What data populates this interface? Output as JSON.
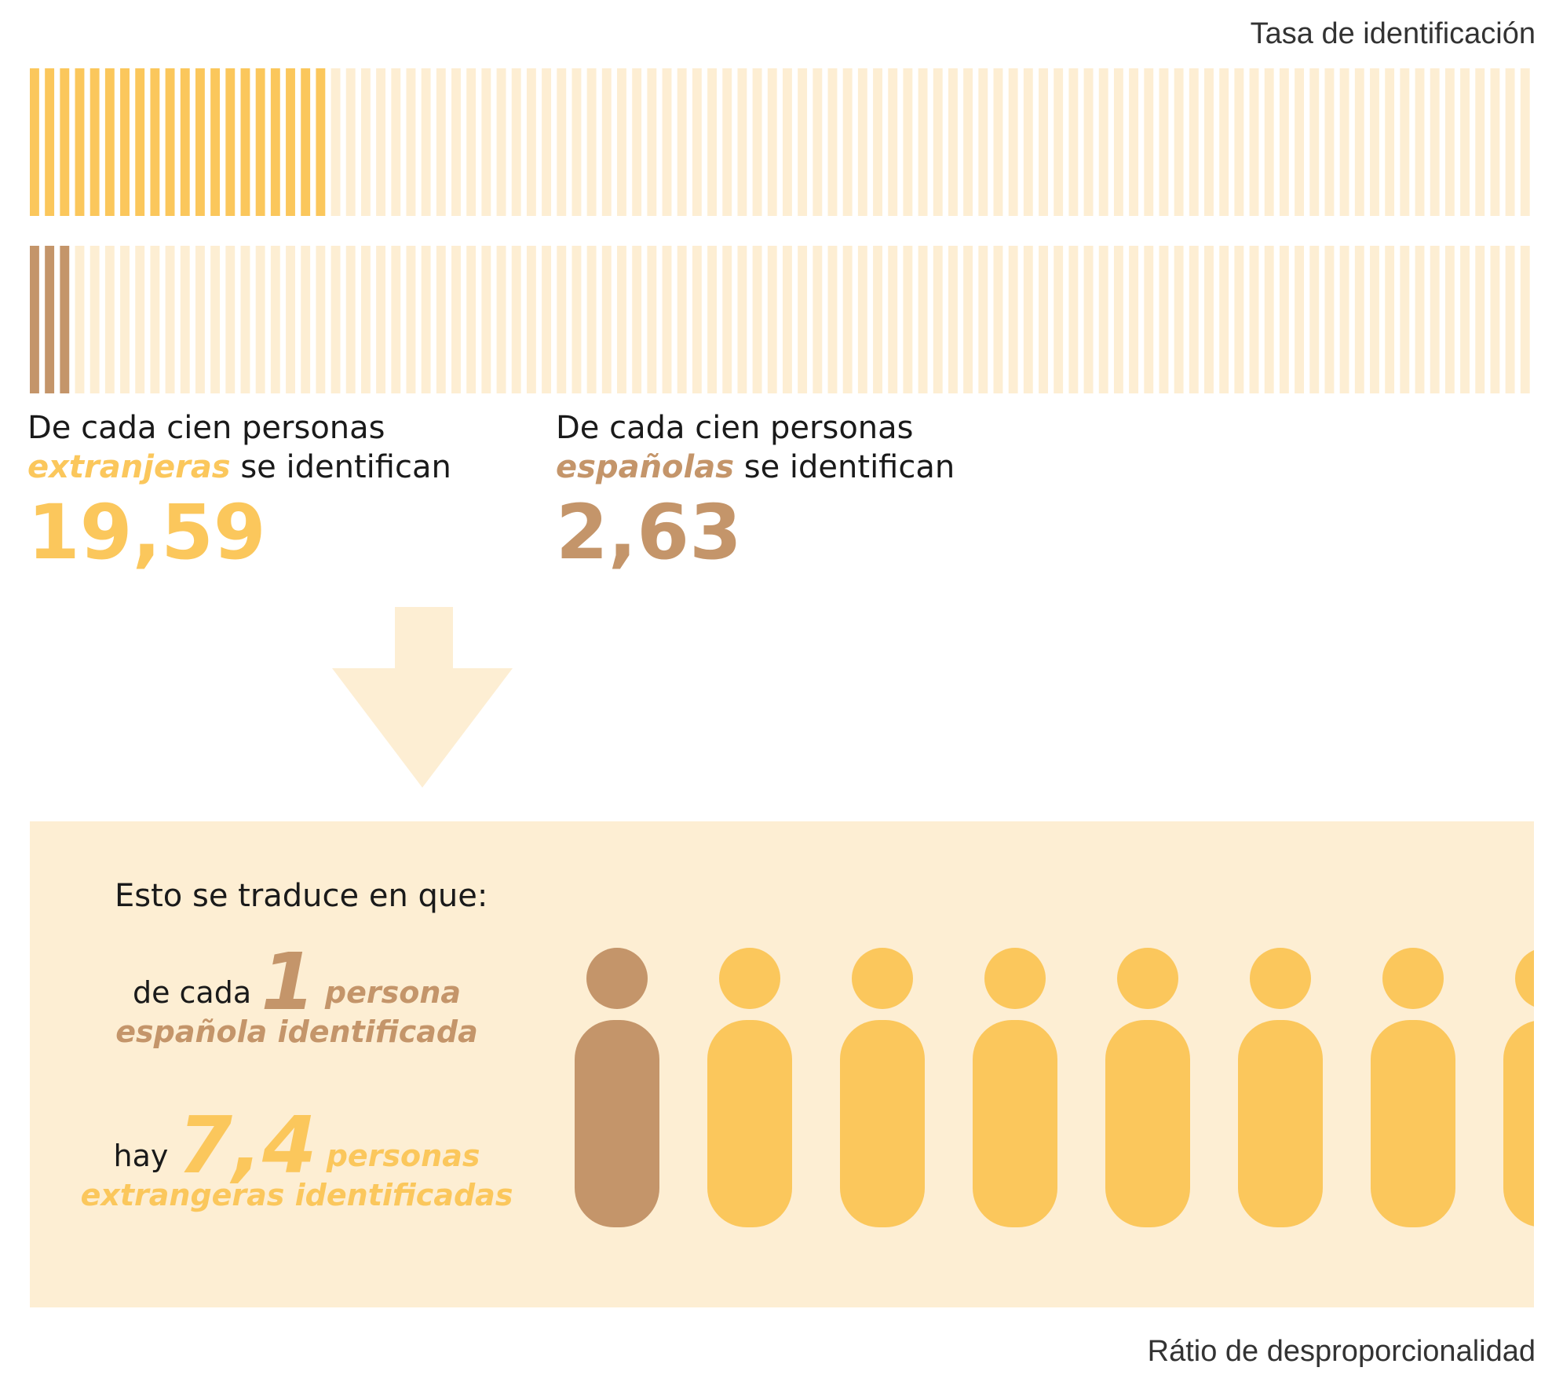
{
  "header": {
    "rate_label": "Tasa de identificación"
  },
  "chart_data": {
    "type": "bar",
    "title": "Tasa de identificación",
    "units_total": 100,
    "series": [
      {
        "value": 19.59
      },
      {
        "value": 2.63
      }
    ],
    "colors": {
      "foreigners": "#fbc75c",
      "spaniards": "#c4956a",
      "background": "#fdeed3"
    },
    "ratio": 7.4
  },
  "stats": {
    "foreigners": {
      "line1": "De cada cien personas",
      "em": "extranjeras",
      "rest": "se identifican",
      "value": "19,59"
    },
    "spaniards": {
      "line1": "De cada cien personas",
      "em": "españolas",
      "rest": "se identifican",
      "value": "2,63"
    }
  },
  "panel": {
    "intro": "Esto se traduce en que:",
    "line1_pre": "de cada",
    "line1_num": "1",
    "line1_em1": "persona",
    "line1_em2": "española identificada",
    "line2_pre": "hay",
    "line2_num": "7,4",
    "line2_em1": "personas",
    "line2_em2": "extrangeras identificadas"
  },
  "footer": {
    "ratio_label": "Rátio de desproporcionalidad"
  },
  "icons": {
    "arrow": "down-arrow-icon",
    "person": "person-icon"
  }
}
